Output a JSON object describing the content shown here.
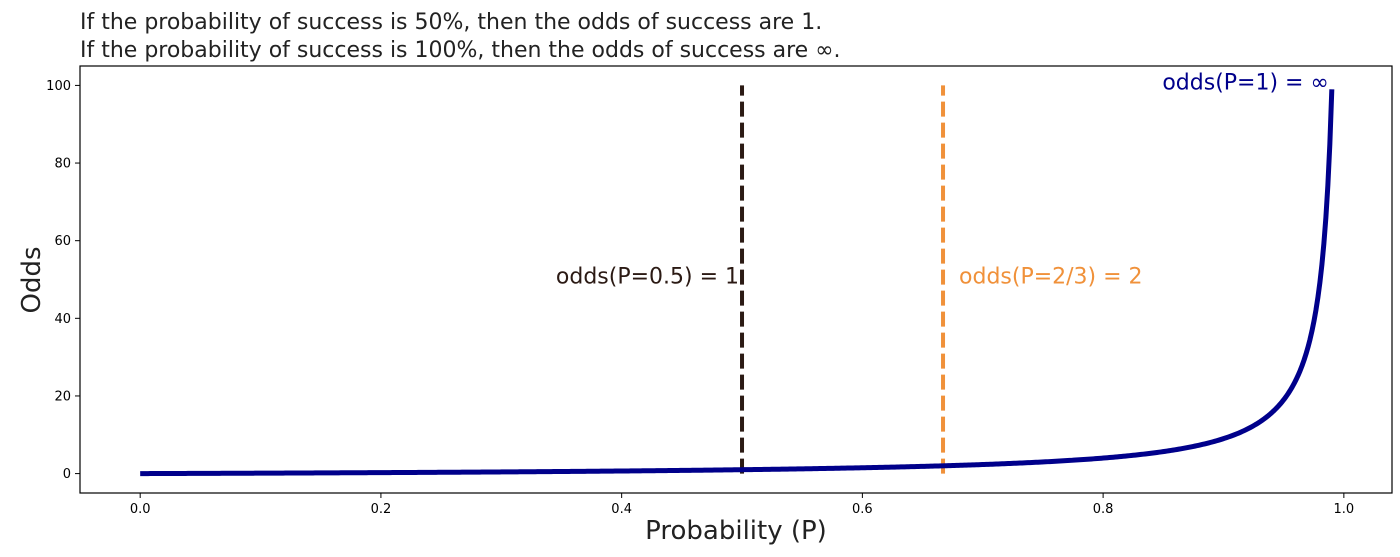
{
  "chart_data": {
    "type": "line",
    "title_lines": [
      "If the probability of success is 50%, then the odds of success are 1.",
      "If the probability of success is 100%, then the odds of success are ∞."
    ],
    "xlabel": "Probability (P)",
    "ylabel": "Odds",
    "xlim": [
      -0.05,
      1.04
    ],
    "ylim": [
      -5,
      105
    ],
    "xticks": [
      0.0,
      0.2,
      0.4,
      0.6,
      0.8,
      1.0
    ],
    "xtick_labels": [
      "0.0",
      "0.2",
      "0.4",
      "0.6",
      "0.8",
      "1.0"
    ],
    "yticks": [
      0,
      20,
      40,
      60,
      80,
      100
    ],
    "ytick_labels": [
      "0",
      "20",
      "40",
      "60",
      "80",
      "100"
    ],
    "grid": false,
    "series": [
      {
        "formula": "odds = P / (1 - P)",
        "color": "#00008b",
        "x": [
          0.0,
          0.1,
          0.2,
          0.3,
          0.4,
          0.5,
          0.6,
          0.667,
          0.7,
          0.75,
          0.8,
          0.85,
          0.88,
          0.9,
          0.92,
          0.94,
          0.95,
          0.96,
          0.97,
          0.98,
          0.985,
          0.99
        ],
        "y": [
          0.0,
          0.11,
          0.25,
          0.43,
          0.67,
          1.0,
          1.5,
          2.0,
          2.33,
          3.0,
          4.0,
          5.67,
          7.33,
          9.0,
          11.5,
          15.67,
          19.0,
          24.0,
          32.33,
          49.0,
          65.67,
          99.0
        ]
      }
    ],
    "vlines": [
      {
        "x": 0.5,
        "y_range": [
          0,
          100
        ],
        "color": "#2b1a14",
        "style": "dashed"
      },
      {
        "x": 0.667,
        "y_range": [
          0,
          100
        ],
        "color": "#f0913a",
        "style": "dashed"
      }
    ],
    "annotations": [
      {
        "text": "odds(P=0.5) = 1",
        "x": 0.5,
        "y": 51,
        "anchor": "end",
        "color": "#2b1a14"
      },
      {
        "text": "odds(P=2/3) = 2",
        "x": 0.667,
        "y": 51,
        "anchor": "start",
        "color": "#f0913a"
      },
      {
        "text": "odds(P=1) = ∞",
        "x": 0.99,
        "y": 101,
        "anchor": "end",
        "color": "#00008b"
      }
    ]
  }
}
